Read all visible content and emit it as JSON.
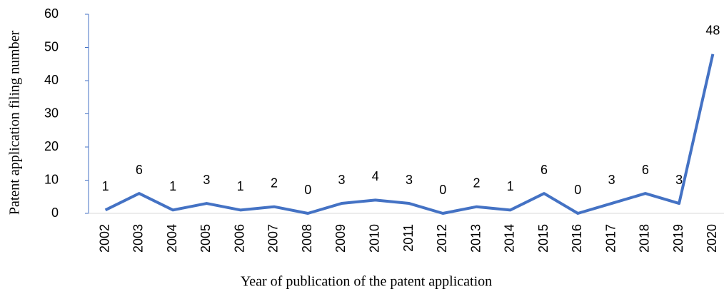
{
  "chart_data": {
    "type": "line",
    "y_label": "Patent application filing number",
    "x_label": "Year of publication of the patent application",
    "categories": [
      "2002",
      "2003",
      "2004",
      "2005",
      "2006",
      "2007",
      "2008",
      "2009",
      "2010",
      "2011",
      "2012",
      "2013",
      "2014",
      "2015",
      "2016",
      "2017",
      "2018",
      "2019",
      "2020"
    ],
    "series": [
      {
        "color": "#4472c4",
        "values": [
          1,
          6,
          1,
          3,
          1,
          2,
          0,
          3,
          4,
          3,
          0,
          2,
          1,
          6,
          0,
          3,
          6,
          3,
          48
        ]
      }
    ],
    "ylim": [
      0,
      60
    ],
    "yticks": [
      0,
      10,
      20,
      30,
      40,
      50,
      60
    ],
    "data_labels": true
  }
}
